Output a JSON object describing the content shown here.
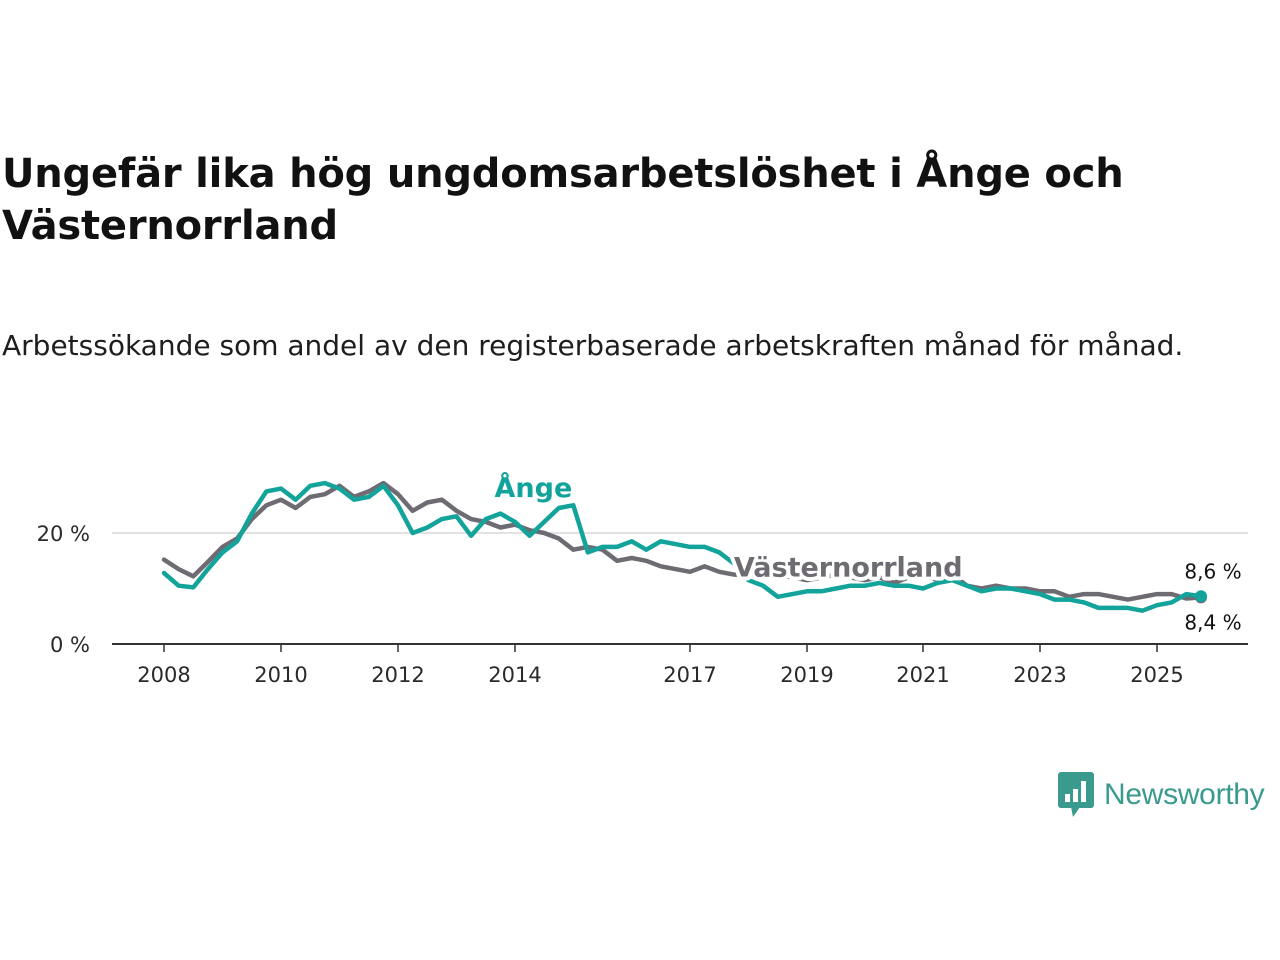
{
  "title": "Ungefär lika hög ungdomsarbetslöshet i Ånge och Västernorrland",
  "subtitle": "Arbetssökande som andel av den registerbaserade arbetskraften månad för månad.",
  "brand": {
    "name": "Newsworthy",
    "color": "#3a9a8e"
  },
  "chart_data": {
    "type": "line",
    "title": "Ungefär lika hög ungdomsarbetslöshet i Ånge och Västernorrland",
    "xlabel": "",
    "ylabel": "",
    "ylim": [
      0,
      33
    ],
    "xlim": [
      2007.5,
      2026.5
    ],
    "x_ticks": [
      {
        "value": 2008,
        "label": "2008"
      },
      {
        "value": 2010,
        "label": "2010"
      },
      {
        "value": 2012,
        "label": "2012"
      },
      {
        "value": 2014,
        "label": "2014"
      },
      {
        "value": 2017,
        "label": "2017"
      },
      {
        "value": 2019,
        "label": "2019"
      },
      {
        "value": 2021,
        "label": "2021"
      },
      {
        "value": 2023,
        "label": "2023"
      },
      {
        "value": 2025,
        "label": "2025"
      }
    ],
    "y_ticks": [
      {
        "value": 0,
        "label": "0 %"
      },
      {
        "value": 20,
        "label": "20 %"
      }
    ],
    "grid": true,
    "series": [
      {
        "name": "Västernorrland",
        "label": "Västernorrland",
        "color": "#6f6b72",
        "end_label": "8,4 %",
        "x": [
          2008.0,
          2008.25,
          2008.5,
          2008.75,
          2009.0,
          2009.25,
          2009.5,
          2009.75,
          2010.0,
          2010.25,
          2010.5,
          2010.75,
          2011.0,
          2011.25,
          2011.5,
          2011.75,
          2012.0,
          2012.25,
          2012.5,
          2012.75,
          2013.0,
          2013.25,
          2013.5,
          2013.75,
          2014.0,
          2014.25,
          2014.5,
          2014.75,
          2015.0,
          2015.25,
          2015.5,
          2015.75,
          2016.0,
          2016.25,
          2016.5,
          2016.75,
          2017.0,
          2017.25,
          2017.5,
          2017.75,
          2018.0,
          2018.25,
          2018.5,
          2018.75,
          2019.0,
          2019.25,
          2019.5,
          2019.75,
          2020.0,
          2020.25,
          2020.5,
          2020.75,
          2021.0,
          2021.25,
          2021.5,
          2021.75,
          2022.0,
          2022.25,
          2022.5,
          2022.75,
          2023.0,
          2023.25,
          2023.5,
          2023.75,
          2024.0,
          2024.25,
          2024.5,
          2024.75,
          2025.0,
          2025.25,
          2025.5,
          2025.75
        ],
        "values": [
          15.2,
          13.5,
          12.2,
          14.8,
          17.5,
          19.0,
          22.5,
          25.0,
          26.0,
          24.5,
          26.5,
          27.0,
          28.5,
          26.5,
          27.5,
          29.0,
          27.0,
          24.0,
          25.5,
          26.0,
          24.0,
          22.5,
          22.0,
          21.0,
          21.5,
          20.5,
          20.0,
          19.0,
          17.0,
          17.5,
          17.0,
          15.0,
          15.5,
          15.0,
          14.0,
          13.5,
          13.0,
          14.0,
          13.0,
          12.5,
          12.5,
          13.0,
          12.5,
          12.0,
          11.5,
          12.0,
          12.5,
          12.0,
          11.5,
          12.0,
          11.0,
          12.0,
          12.5,
          11.5,
          12.5,
          10.5,
          10.0,
          10.5,
          10.0,
          10.0,
          9.5,
          9.5,
          8.5,
          9.0,
          9.0,
          8.5,
          8.0,
          8.5,
          9.0,
          9.0,
          8.2,
          8.4
        ]
      },
      {
        "name": "Ånge",
        "label": "Ånge",
        "color": "#12a39a",
        "end_label": "8,6 %",
        "x": [
          2008.0,
          2008.25,
          2008.5,
          2008.75,
          2009.0,
          2009.25,
          2009.5,
          2009.75,
          2010.0,
          2010.25,
          2010.5,
          2010.75,
          2011.0,
          2011.25,
          2011.5,
          2011.75,
          2012.0,
          2012.25,
          2012.5,
          2012.75,
          2013.0,
          2013.25,
          2013.5,
          2013.75,
          2014.0,
          2014.25,
          2014.5,
          2014.75,
          2015.0,
          2015.25,
          2015.5,
          2015.75,
          2016.0,
          2016.25,
          2016.5,
          2016.75,
          2017.0,
          2017.25,
          2017.5,
          2017.75,
          2018.0,
          2018.25,
          2018.5,
          2018.75,
          2019.0,
          2019.25,
          2019.5,
          2019.75,
          2020.0,
          2020.25,
          2020.5,
          2020.75,
          2021.0,
          2021.25,
          2021.5,
          2021.75,
          2022.0,
          2022.25,
          2022.5,
          2022.75,
          2023.0,
          2023.25,
          2023.5,
          2023.75,
          2024.0,
          2024.25,
          2024.5,
          2024.75,
          2025.0,
          2025.25,
          2025.5,
          2025.75
        ],
        "values": [
          12.8,
          10.5,
          10.2,
          13.5,
          16.5,
          18.5,
          23.5,
          27.5,
          28.0,
          26.0,
          28.5,
          29.0,
          28.0,
          26.0,
          26.5,
          28.5,
          25.0,
          20.0,
          21.0,
          22.5,
          23.0,
          19.5,
          22.5,
          23.5,
          22.0,
          19.5,
          22.0,
          24.5,
          25.0,
          16.5,
          17.5,
          17.5,
          18.5,
          17.0,
          18.5,
          18.0,
          17.5,
          17.5,
          16.5,
          14.5,
          11.5,
          10.5,
          8.5,
          9.0,
          9.5,
          9.5,
          10.0,
          10.5,
          10.5,
          11.0,
          10.5,
          10.5,
          10.0,
          11.0,
          11.5,
          10.5,
          9.5,
          10.0,
          10.0,
          9.5,
          9.0,
          8.0,
          8.0,
          7.5,
          6.5,
          6.5,
          6.5,
          6.0,
          7.0,
          7.5,
          9.0,
          8.6
        ]
      }
    ]
  }
}
